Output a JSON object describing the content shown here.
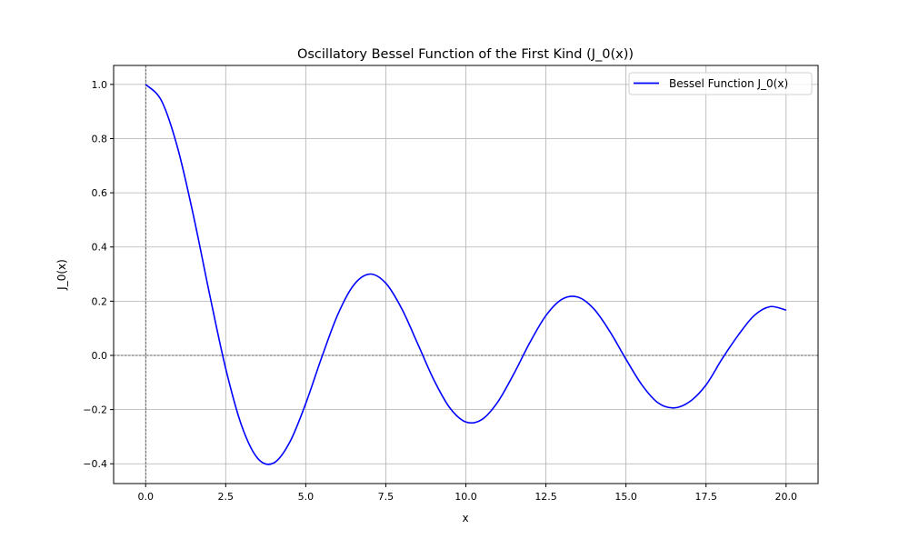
{
  "chart_data": {
    "type": "line",
    "title": "Oscillatory Bessel Function of the First Kind (J_0(x))",
    "xlabel": "x",
    "ylabel": "J_0(x)",
    "xlim": [
      -1.0,
      21.0
    ],
    "ylim": [
      -0.473,
      1.07
    ],
    "xticks": [
      0.0,
      2.5,
      5.0,
      7.5,
      10.0,
      12.5,
      15.0,
      17.5,
      20.0
    ],
    "xtick_labels": [
      "0.0",
      "2.5",
      "5.0",
      "7.5",
      "10.0",
      "12.5",
      "15.0",
      "17.5",
      "20.0"
    ],
    "yticks": [
      -0.4,
      -0.2,
      0.0,
      0.2,
      0.4,
      0.6,
      0.8,
      1.0
    ],
    "ytick_labels": [
      "−0.4",
      "−0.2",
      "0.0",
      "0.2",
      "0.4",
      "0.6",
      "0.8",
      "1.0"
    ],
    "grid": true,
    "reference_lines": {
      "horizontal_y": 0,
      "vertical_x": 0,
      "style": "dashed",
      "color": "#000000"
    },
    "legend": {
      "placement": "upper right",
      "entries": [
        "Bessel Function J_0(x)"
      ]
    },
    "series": [
      {
        "name": "Bessel Function J_0(x)",
        "color": "#0000ff",
        "x": [
          0,
          0.5,
          1,
          1.5,
          2,
          2.5,
          3,
          3.5,
          4,
          4.5,
          5,
          5.5,
          6,
          6.5,
          7,
          7.5,
          8,
          8.5,
          9,
          9.5,
          10,
          10.5,
          11,
          11.5,
          12,
          12.5,
          13,
          13.5,
          14,
          14.5,
          15,
          15.5,
          16,
          16.5,
          17,
          17.5,
          18,
          18.5,
          19,
          19.5,
          20
        ],
        "y": [
          1.0,
          0.9385,
          0.7652,
          0.5118,
          0.2239,
          -0.0484,
          -0.2601,
          -0.3801,
          -0.3971,
          -0.3205,
          -0.1776,
          -0.0068,
          0.1506,
          0.2601,
          0.3001,
          0.2663,
          0.1717,
          0.0419,
          -0.0903,
          -0.1939,
          -0.2459,
          -0.2366,
          -0.1712,
          -0.0677,
          0.0477,
          0.1469,
          0.2069,
          0.215,
          0.1711,
          0.0875,
          -0.0142,
          -0.1092,
          -0.1749,
          -0.1939,
          -0.1699,
          -0.1092,
          -0.0134,
          0.0736,
          0.1466,
          0.1798,
          0.167
        ]
      }
    ]
  }
}
